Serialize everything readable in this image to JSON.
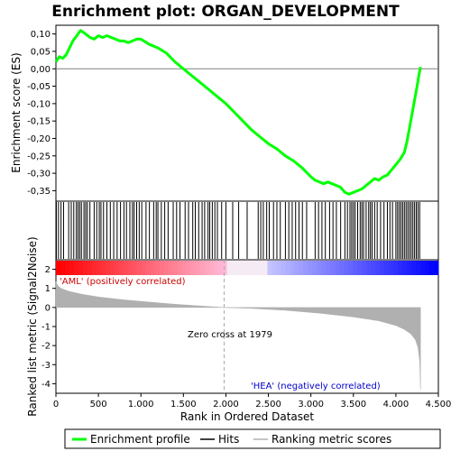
{
  "chart_data": {
    "type": "line",
    "title": "Enrichment plot: ORGAN_DEVELOPMENT",
    "top_panel": {
      "ylabel": "Enrichment score (ES)",
      "ylim": [
        -0.38,
        0.125
      ],
      "yticks": [
        0.1,
        0.05,
        0.0,
        -0.05,
        -0.1,
        -0.15,
        -0.2,
        -0.25,
        -0.3,
        -0.35
      ],
      "ytick_labels": [
        "0,10",
        "0,05",
        "0,00",
        "-0,05",
        "-0,10",
        "-0,15",
        "-0,20",
        "-0,25",
        "-0,30",
        "-0,35"
      ],
      "series": [
        {
          "name": "Enrichment profile",
          "color": "#00ff00",
          "x": [
            0,
            40,
            80,
            120,
            160,
            200,
            230,
            260,
            290,
            320,
            350,
            400,
            450,
            500,
            550,
            600,
            650,
            700,
            750,
            800,
            850,
            900,
            950,
            1000,
            1100,
            1200,
            1300,
            1400,
            1500,
            1600,
            1700,
            1800,
            1900,
            2000,
            2100,
            2200,
            2300,
            2400,
            2500,
            2600,
            2700,
            2800,
            2900,
            3000,
            3050,
            3100,
            3150,
            3200,
            3250,
            3300,
            3350,
            3400,
            3450,
            3500,
            3550,
            3600,
            3650,
            3700,
            3750,
            3800,
            3850,
            3900,
            3950,
            4000,
            4050,
            4100,
            4130,
            4160,
            4190,
            4220,
            4250,
            4270,
            4290
          ],
          "y": [
            0.02,
            0.035,
            0.03,
            0.04,
            0.06,
            0.08,
            0.09,
            0.1,
            0.11,
            0.105,
            0.1,
            0.09,
            0.085,
            0.095,
            0.09,
            0.095,
            0.09,
            0.085,
            0.08,
            0.08,
            0.075,
            0.08,
            0.085,
            0.085,
            0.07,
            0.06,
            0.045,
            0.02,
            0.0,
            -0.02,
            -0.04,
            -0.06,
            -0.08,
            -0.1,
            -0.125,
            -0.15,
            -0.175,
            -0.195,
            -0.215,
            -0.23,
            -0.25,
            -0.265,
            -0.285,
            -0.31,
            -0.32,
            -0.325,
            -0.33,
            -0.325,
            -0.33,
            -0.335,
            -0.34,
            -0.355,
            -0.36,
            -0.355,
            -0.35,
            -0.345,
            -0.335,
            -0.325,
            -0.315,
            -0.32,
            -0.31,
            -0.305,
            -0.29,
            -0.275,
            -0.26,
            -0.24,
            -0.21,
            -0.17,
            -0.13,
            -0.09,
            -0.05,
            -0.02,
            0.005
          ]
        }
      ]
    },
    "hits": [
      5,
      30,
      60,
      90,
      150,
      180,
      210,
      240,
      260,
      280,
      300,
      330,
      350,
      370,
      400,
      450,
      480,
      510,
      530,
      560,
      600,
      640,
      680,
      720,
      760,
      800,
      830,
      870,
      900,
      920,
      950,
      980,
      1010,
      1060,
      1100,
      1150,
      1180,
      1200,
      1240,
      1280,
      1320,
      1380,
      1420,
      1460,
      1520,
      1560,
      1610,
      1640,
      1680,
      1720,
      1750,
      1790,
      1810,
      1840,
      1870,
      1900,
      1950,
      2000,
      2080,
      2150,
      2250,
      2380,
      2410,
      2440,
      2480,
      2510,
      2560,
      2600,
      2640,
      2700,
      2740,
      2780,
      2820,
      2860,
      2900,
      2950,
      3050,
      3090,
      3130,
      3170,
      3220,
      3260,
      3300,
      3350,
      3400,
      3430,
      3460,
      3480,
      3500,
      3520,
      3550,
      3580,
      3600,
      3620,
      3650,
      3680,
      3700,
      3720,
      3750,
      3780,
      3820,
      3860,
      3900,
      3930,
      3960,
      4000,
      4020,
      4040,
      4060,
      4080,
      4100,
      4120,
      4140,
      4160,
      4180,
      4200,
      4220,
      4240,
      4260,
      4280
    ],
    "metric_panel": {
      "ylabel": "Ranked list metric (Signal2Noise)",
      "ylim": [
        -4.5,
        2.5
      ],
      "yticks": [
        2,
        1,
        0,
        -1,
        -2,
        -3,
        -4
      ],
      "ytick_labels": [
        "2",
        "1",
        "0",
        "-1",
        "-2",
        "-3",
        "-4"
      ],
      "series": [
        {
          "name": "Ranking metric scores",
          "color": "#b0b0b0",
          "x": [
            0,
            20,
            60,
            150,
            300,
            500,
            800,
            1100,
            1400,
            1700,
            1979,
            2300,
            2700,
            3100,
            3500,
            3800,
            4000,
            4100,
            4180,
            4230,
            4260,
            4280,
            4290
          ],
          "y": [
            1.35,
            1.15,
            1.0,
            0.85,
            0.7,
            0.55,
            0.4,
            0.28,
            0.17,
            0.08,
            0.0,
            -0.05,
            -0.15,
            -0.3,
            -0.5,
            -0.7,
            -0.95,
            -1.15,
            -1.4,
            -1.7,
            -2.1,
            -2.8,
            -4.3
          ]
        }
      ],
      "annotations": [
        {
          "text": "'AML' (positively correlated)",
          "color": "#cc0000"
        },
        {
          "text": "Zero cross at 1979",
          "color": "#000000"
        },
        {
          "text": "'HEA' (negatively correlated)",
          "color": "#0000cc"
        }
      ],
      "zero_cross": 1979
    },
    "xlabel": "Rank in Ordered Dataset",
    "xlim": [
      0,
      4500
    ],
    "xticks": [
      0,
      500,
      1000,
      1500,
      2000,
      2500,
      3000,
      3500,
      4000,
      4500
    ],
    "xtick_labels": [
      "0",
      "500",
      "1.000",
      "1.500",
      "2.000",
      "2.500",
      "3.000",
      "3.500",
      "4.000",
      "4.500"
    ],
    "legend": {
      "placement": "bottom",
      "entries": [
        {
          "label": "Enrichment profile",
          "color": "#00ff00"
        },
        {
          "label": "Hits",
          "color": "#000000"
        },
        {
          "label": "Ranking metric scores",
          "color": "#b0b0b0"
        }
      ]
    },
    "grid": false
  }
}
